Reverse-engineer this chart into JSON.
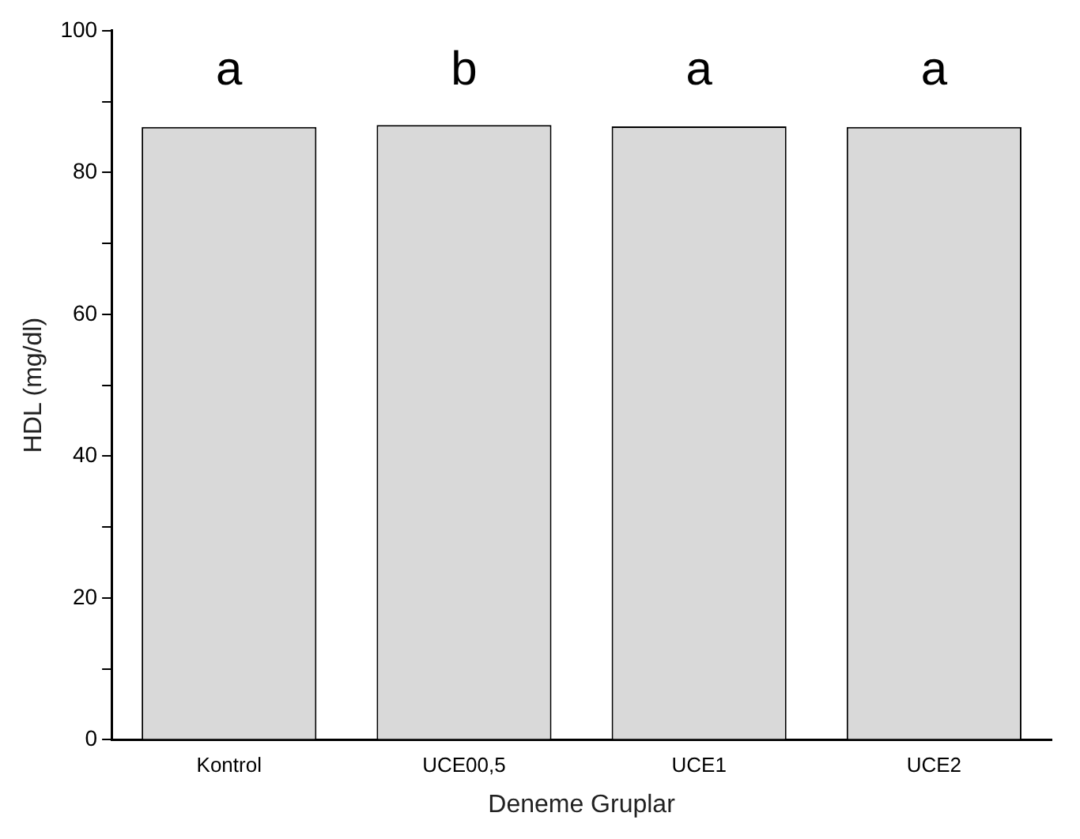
{
  "chart_data": {
    "type": "bar",
    "xlabel": "Deneme Gruplar",
    "ylabel": "HDL (mg/dl)",
    "categories": [
      "Kontrol",
      "UCE00,5",
      "UCE1",
      "UCE2"
    ],
    "values": [
      86.4,
      86.7,
      86.5,
      86.4
    ],
    "color": "#d9d9d9",
    "ylim": [
      0,
      100
    ],
    "yticks": [
      0,
      {
        "value": 10,
        "label": null
      },
      20,
      {
        "value": 30,
        "label": null
      },
      40,
      {
        "value": 50,
        "label": null
      },
      60,
      {
        "value": 70,
        "label": null
      },
      80,
      {
        "value": 90,
        "label": null
      },
      100
    ],
    "annotations": [
      "a",
      "b",
      "a",
      "a"
    ],
    "grid": false,
    "legend": false
  }
}
